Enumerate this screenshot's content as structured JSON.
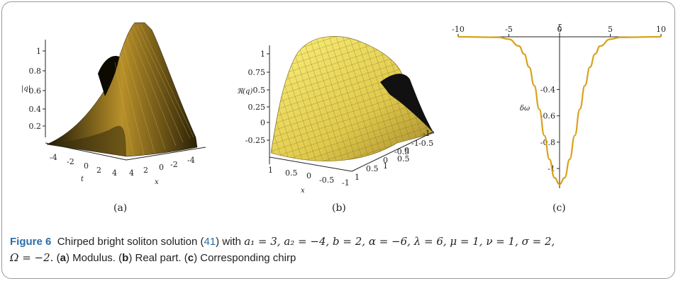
{
  "panels": [
    {
      "id": "a",
      "sublabel": "(a)",
      "zlabel": "|q|",
      "xlabel": "x",
      "ylabel": "t",
      "z_ticks": [
        "1",
        "0.8",
        "0.6",
        "0.4",
        "0.2"
      ],
      "t_ticks": [
        "-4",
        "-2",
        "0",
        "2",
        "4"
      ],
      "x_ticks": [
        "4",
        "2",
        "0",
        "-2",
        "-4"
      ]
    },
    {
      "id": "b",
      "sublabel": "(b)",
      "zlabel": "ℜ(q)",
      "xlabel": "x",
      "z_ticks": [
        "1",
        "0.75",
        "0.5",
        "0.25",
        "0",
        "-0.25"
      ],
      "front_ticks": [
        "1",
        "0.5",
        "0",
        "-0.5",
        "-1"
      ],
      "side_ticks": [
        "1",
        "0.5",
        "0",
        "-0.5",
        "-1"
      ],
      "back_ticks": [
        "-1",
        "-0.5",
        "0",
        "0.5",
        "1"
      ]
    },
    {
      "id": "c",
      "sublabel": "(c)",
      "xlabel": "ξ",
      "ylabel": "δω"
    }
  ],
  "chart_data": {
    "type": "line",
    "title": "",
    "xlabel": "ξ",
    "ylabel": "δω",
    "xlim": [
      -10,
      10
    ],
    "ylim": [
      -1.15,
      0
    ],
    "x_ticks": [
      "-10",
      "-5",
      "0",
      "5",
      "10"
    ],
    "y_ticks": [
      "-0.4",
      "-0.6",
      "-0.8",
      "-1"
    ],
    "grid": false,
    "series": [
      {
        "color": "#d9a21b",
        "x": [
          -10,
          -6,
          -5,
          -4,
          -3.5,
          -3,
          -2.5,
          -2,
          -1.5,
          -1,
          -0.5,
          0,
          0.5,
          1,
          1.5,
          2,
          2.5,
          3,
          3.5,
          4,
          5,
          6,
          10
        ],
        "y": [
          -0.0,
          -0.004,
          -0.018,
          -0.07,
          -0.13,
          -0.23,
          -0.37,
          -0.55,
          -0.75,
          -0.93,
          -1.07,
          -1.12,
          -1.07,
          -0.93,
          -0.75,
          -0.55,
          -0.37,
          -0.23,
          -0.13,
          -0.07,
          -0.018,
          -0.004,
          -0.0
        ]
      }
    ]
  },
  "caption": {
    "figure_label": "Figure 6",
    "text_1": "Chirped bright soliton solution (",
    "ref": "41",
    "text_2": ") with ",
    "params": "a₁ = 3, a₂ = −4, b = 2, α = −6, λ = 6, μ = 1, ν = 1, σ = 2,",
    "params_2": "Ω = −2.",
    "part_a_key": "a",
    "part_a": "Modulus.",
    "part_b_key": "b",
    "part_b": "Real part.",
    "part_c_key": "c",
    "part_c": "Corresponding chirp"
  },
  "colors": {
    "surface_dark": "#2a2108",
    "surface_gold": "#c9a23a",
    "surface_light": "#f3e46a",
    "curve": "#d9a21b"
  }
}
